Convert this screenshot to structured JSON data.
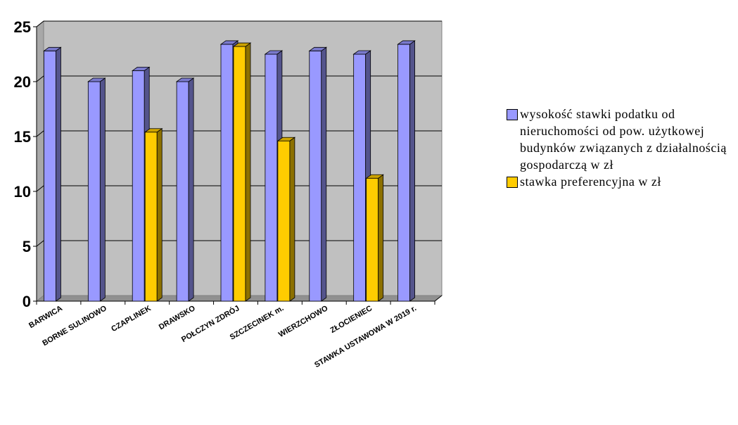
{
  "chart_data": {
    "type": "bar",
    "categories": [
      "BARWICA",
      "BORNE SULINOWO",
      "CZAPLINEK",
      "DRAWSKO",
      "POŁCZYN ZDRÓJ",
      "SZCZECINEK m.",
      "WIERZCHOWO",
      "ZŁOCIENIEC",
      "STAWKA USTAWOWA W 2019 r."
    ],
    "series": [
      {
        "name": "wysokość stawki podatku od nieruchomości od pow. użytkowej budynków związanych z działalnością gospodarczą w zł",
        "color": "#9999ff",
        "values": [
          22.8,
          20.0,
          21.0,
          20.0,
          23.4,
          22.5,
          22.8,
          22.5,
          23.4
        ]
      },
      {
        "name": "stawka preferencyjna w zł",
        "color": "#ffcc00",
        "values": [
          null,
          null,
          15.4,
          null,
          23.2,
          14.6,
          null,
          11.2,
          null
        ]
      }
    ],
    "ylim": [
      0,
      25
    ],
    "yticks": [
      "0",
      "5",
      "10",
      "15",
      "20",
      "25"
    ],
    "grid": true,
    "legend_position": "right"
  }
}
